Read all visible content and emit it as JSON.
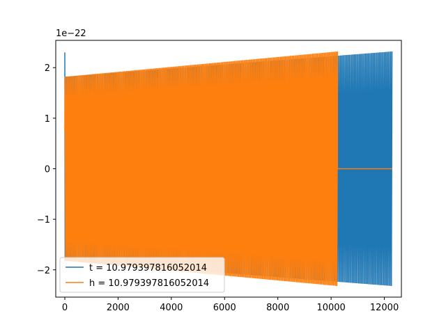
{
  "chart_data": {
    "type": "line",
    "title": "",
    "xlabel": "",
    "ylabel": "",
    "xlim": [
      -340,
      12640
    ],
    "ylim": [
      -2.54,
      2.54
    ],
    "y_offset_label": "1e−22",
    "x_ticks": [
      0,
      2000,
      4000,
      6000,
      8000,
      10000,
      12000
    ],
    "x_tick_labels": [
      "0",
      "2000",
      "4000",
      "6000",
      "8000",
      "10000",
      "12000"
    ],
    "y_ticks": [
      -2,
      -1,
      0,
      1,
      2
    ],
    "y_tick_labels": [
      "−2",
      "−1",
      "0",
      "1",
      "2"
    ],
    "grid": false,
    "legend_position": "lower-left",
    "series": [
      {
        "name": "t = 10.979397816052014",
        "color": "#1f77b4",
        "description_points": {
          "x_start": 0,
          "x_end": 12288,
          "initial_spike_amplitude": 2.3,
          "envelope_start_amplitude": 1.82,
          "envelope_end_amplitude": 2.32
        }
      },
      {
        "name": "h = 10.979397816052014",
        "color": "#ff7f0e",
        "description_points": {
          "x_start": 0,
          "x_cutoff": 10240,
          "x_end": 12288,
          "envelope_start_amplitude": 1.82,
          "envelope_end_amplitude": 2.32,
          "value_after_cutoff": 0
        }
      }
    ]
  }
}
